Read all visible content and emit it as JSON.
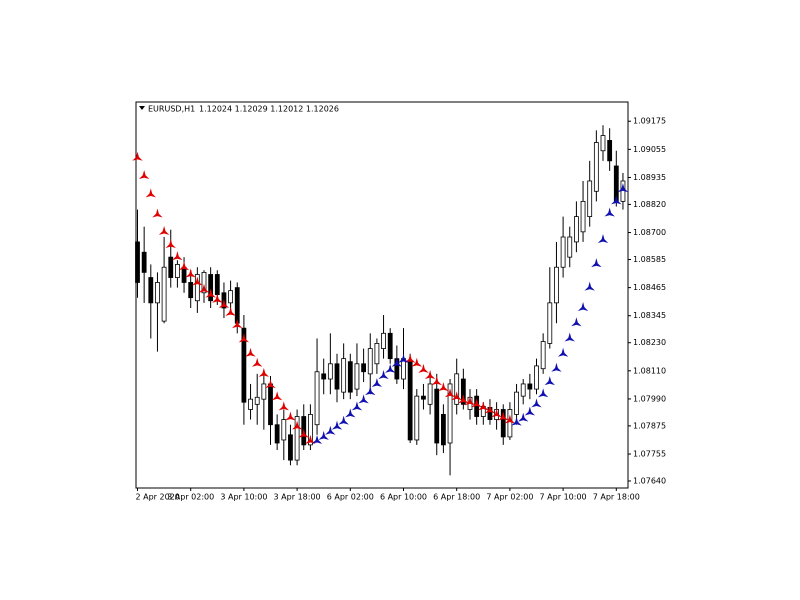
{
  "chart_data": {
    "type": "candlestick",
    "symbol": "EURUSD,H1",
    "ohlc_text": "1.12024 1.12029 1.12012 1.12026",
    "categories": [
      "2 Apr 2020",
      null,
      null,
      null,
      null,
      null,
      null,
      null,
      "3 Apr 02:00",
      null,
      null,
      null,
      null,
      null,
      null,
      null,
      "3 Apr 10:00",
      null,
      null,
      null,
      null,
      null,
      null,
      null,
      "3 Apr 18:00",
      null,
      null,
      null,
      null,
      null,
      null,
      null,
      "6 Apr 02:00",
      null,
      null,
      null,
      null,
      null,
      null,
      null,
      "6 Apr 10:00",
      null,
      null,
      null,
      null,
      null,
      null,
      null,
      "6 Apr 18:00",
      null,
      null,
      null,
      null,
      null,
      null,
      null,
      "7 Apr 02:00",
      null,
      null,
      null,
      null,
      null,
      null,
      null,
      "7 Apr 10:00",
      null,
      null,
      null,
      null,
      null,
      null,
      null,
      "7 Apr 18:00",
      null
    ],
    "open": [
      1.0866,
      1.08616,
      1.08508,
      1.084,
      1.08322,
      1.08595,
      1.08508,
      1.08552,
      1.08487,
      1.08409,
      1.08443,
      1.08521,
      1.08521,
      1.08443,
      1.084,
      1.08465,
      1.08292,
      1.07945,
      1.07967,
      1.07989,
      1.08054,
      1.0788,
      1.07815,
      1.07837,
      1.07729,
      1.07915,
      1.07794,
      1.0788,
      1.08097,
      1.08075,
      1.0814,
      1.08019,
      1.08149,
      1.08032,
      1.0814,
      1.08097,
      1.0814,
      1.08205,
      1.0827,
      1.08162,
      1.08075,
      1.08149,
      1.07815,
      1.08002,
      1.07967,
      1.08032,
      1.07924,
      1.07802,
      1.07967,
      1.08075,
      1.07945,
      1.08002,
      1.07915,
      1.07954,
      1.07902,
      1.07945,
      1.07828,
      1.07924,
      1.08002,
      1.08054,
      1.08032,
      1.08119,
      1.08227,
      1.084,
      1.08552,
      1.08595,
      1.0866,
      1.08703,
      1.08768,
      1.08876,
      1.09049,
      1.09093,
      1.08984,
      1.08833
    ],
    "high": [
      1.08798,
      1.08725,
      1.08564,
      1.0853,
      1.08681,
      1.08712,
      1.08582,
      1.08595,
      1.08539,
      1.08552,
      1.08539,
      1.08552,
      1.08539,
      1.08487,
      1.08495,
      1.08487,
      1.08348,
      1.08054,
      1.08097,
      1.08097,
      1.08088,
      1.07924,
      1.07945,
      1.0788,
      1.07945,
      1.07967,
      1.07967,
      1.08248,
      1.08162,
      1.0827,
      1.08183,
      1.08227,
      1.08183,
      1.08227,
      1.08205,
      1.0827,
      1.08248,
      1.08348,
      1.08292,
      1.08218,
      1.08292,
      1.08183,
      1.08032,
      1.08054,
      1.08097,
      1.08097,
      1.07967,
      1.08075,
      1.08162,
      1.08119,
      1.08032,
      1.08032,
      1.07976,
      1.07989,
      1.07976,
      1.07967,
      1.07976,
      1.08054,
      1.08075,
      1.08097,
      1.08162,
      1.0827,
      1.08552,
      1.0866,
      1.08768,
      1.08725,
      1.08833,
      1.0892,
      1.09006,
      1.09136,
      1.09158,
      1.09145,
      1.09049,
      1.08954
    ],
    "low": [
      1.08422,
      1.084,
      1.08248,
      1.08192,
      1.08313,
      1.08465,
      1.08465,
      1.08443,
      1.08378,
      1.08357,
      1.084,
      1.08378,
      1.08391,
      1.08335,
      1.08357,
      1.0827,
      1.0788,
      1.07902,
      1.0788,
      1.07859,
      1.07794,
      1.07772,
      1.07729,
      1.07707,
      1.07707,
      1.07772,
      1.07772,
      1.07837,
      1.0801,
      1.0801,
      1.07976,
      1.07989,
      1.07989,
      1.08002,
      1.08062,
      1.0801,
      1.08097,
      1.08162,
      1.0814,
      1.08054,
      1.08032,
      1.07802,
      1.07794,
      1.07945,
      1.07924,
      1.0775,
      1.07759,
      1.07664,
      1.07924,
      1.07945,
      1.07902,
      1.0788,
      1.0788,
      1.0788,
      1.07859,
      1.07794,
      1.07815,
      1.0788,
      1.07967,
      1.07989,
      1.0801,
      1.08097,
      1.08205,
      1.08313,
      1.08508,
      1.08552,
      1.08616,
      1.0866,
      1.08725,
      1.08833,
      1.09006,
      1.08963,
      1.08811,
      1.08798
    ],
    "close": [
      1.08487,
      1.0853,
      1.084,
      1.08487,
      1.08552,
      1.08508,
      1.08564,
      1.08487,
      1.08422,
      1.08521,
      1.0853,
      1.08409,
      1.08435,
      1.08378,
      1.08452,
      1.08313,
      1.07976,
      1.07989,
      1.07997,
      1.08054,
      1.0788,
      1.07802,
      1.07902,
      1.07729,
      1.07915,
      1.07794,
      1.07924,
      1.08106,
      1.08075,
      1.0814,
      1.08032,
      1.08162,
      1.08019,
      1.0814,
      1.08106,
      1.08205,
      1.08227,
      1.0827,
      1.08162,
      1.08075,
      1.08162,
      1.07815,
      1.08002,
      1.07989,
      1.08054,
      1.07802,
      1.07794,
      1.08054,
      1.08097,
      1.07967,
      1.07997,
      1.07915,
      1.07958,
      1.07902,
      1.07945,
      1.07828,
      1.07945,
      1.08019,
      1.08054,
      1.08032,
      1.08131,
      1.08235,
      1.084,
      1.08552,
      1.08681,
      1.08681,
      1.08768,
      1.08833,
      1.0892,
      1.09084,
      1.09114,
      1.09006,
      1.08833,
      1.0892
    ],
    "series": [
      {
        "color": "#e00000",
        "values": [
          1.09019,
          1.08941,
          1.08863,
          1.08777,
          1.08703,
          1.08647,
          1.08595,
          1.08552,
          1.08521,
          1.08487,
          1.08456,
          1.08435,
          1.08413,
          1.08391,
          1.08357,
          1.08305,
          1.08244,
          1.08183,
          1.0814,
          1.08097,
          1.08049,
          1.07997,
          1.07954,
          1.07911,
          1.07872,
          1.07837,
          1.07811,
          null,
          null,
          null,
          null,
          null,
          null,
          null,
          null,
          null,
          null,
          null,
          null,
          null,
          null,
          1.08157,
          1.0814,
          1.08114,
          1.08088,
          1.08062,
          1.08036,
          1.0801,
          1.07997,
          1.07984,
          1.07976,
          1.07967,
          1.07954,
          1.07941,
          1.07924,
          1.07911,
          1.07898,
          null,
          null,
          null,
          null,
          null,
          null,
          null,
          null,
          null,
          null,
          null,
          null,
          null,
          null,
          null,
          null,
          null
        ]
      },
      {
        "color": "#1010b0",
        "values": [
          null,
          null,
          null,
          null,
          null,
          null,
          null,
          null,
          null,
          null,
          null,
          null,
          null,
          null,
          null,
          null,
          null,
          null,
          null,
          null,
          null,
          null,
          null,
          null,
          null,
          null,
          null,
          1.07811,
          1.07828,
          1.0785,
          1.07872,
          1.07893,
          1.07924,
          1.07954,
          1.07984,
          1.08019,
          1.08054,
          1.08088,
          1.08114,
          1.0814,
          1.08157,
          null,
          null,
          null,
          null,
          null,
          null,
          null,
          null,
          null,
          null,
          null,
          null,
          null,
          null,
          null,
          null,
          1.07889,
          1.07906,
          1.07932,
          1.07967,
          1.0801,
          1.08062,
          1.08119,
          1.08183,
          1.08248,
          1.08313,
          1.08378,
          1.08465,
          1.08565,
          1.08668,
          1.08781,
          1.08833,
          1.08885
        ]
      }
    ],
    "ylim": [
      1.0761,
      1.09257
    ],
    "yticks": [
      1.09175,
      1.09055,
      1.08935,
      {
        "value": 1.0882,
        "label": "1.08820"
      },
      {
        "value": 1.087,
        "label": "1.08700"
      },
      1.08585,
      1.08465,
      1.08345,
      {
        "value": 1.0823,
        "label": "1.08230"
      },
      {
        "value": 1.0811,
        "label": "1.08110"
      },
      {
        "value": 1.0799,
        "label": "1.07990"
      },
      1.07875,
      1.07755,
      {
        "value": 1.0764,
        "label": "1.07640"
      }
    ],
    "bull_color": "#ffffff",
    "bear_color": "#000000"
  }
}
